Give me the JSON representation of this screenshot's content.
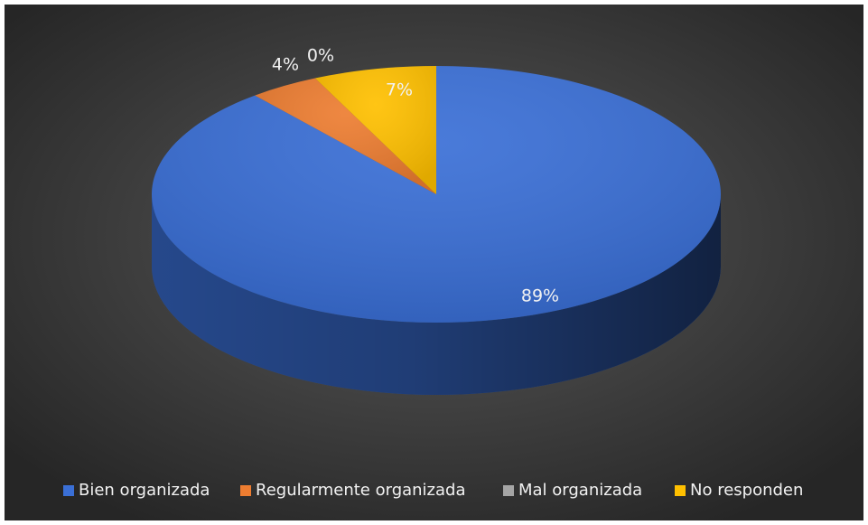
{
  "chart_data": {
    "type": "pie",
    "categories": [
      "Bien organizada",
      "Regularmente organizada",
      "Mal organizada",
      "No responden"
    ],
    "values": [
      89,
      4,
      0,
      7
    ],
    "value_labels": [
      "89%",
      "4%",
      "0%",
      "7%"
    ],
    "colors": [
      "#3a6fd6",
      "#ed7d31",
      "#a5a5a5",
      "#ffc000"
    ],
    "legend": "bottom"
  }
}
